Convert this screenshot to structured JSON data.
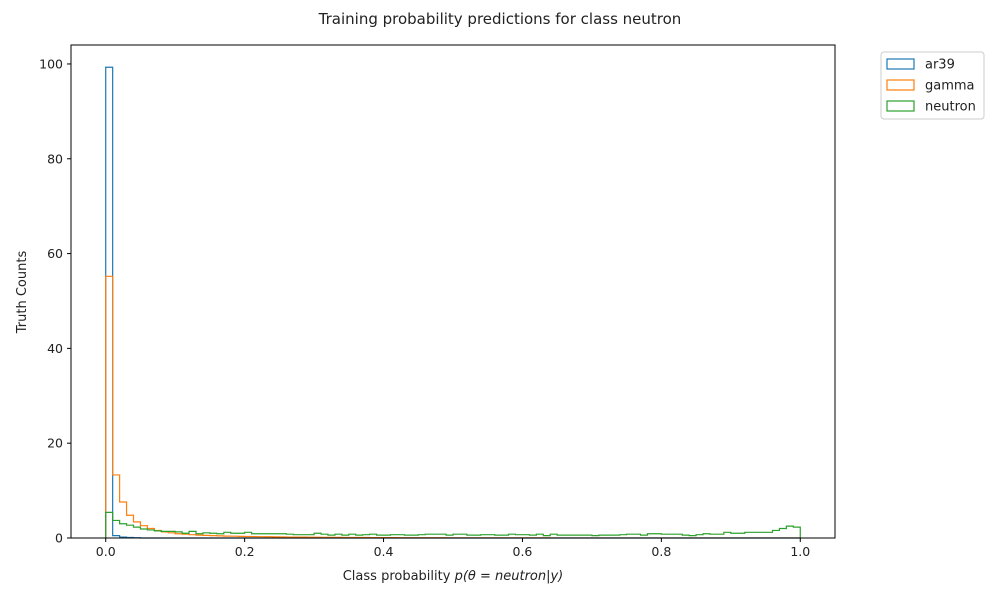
{
  "chart_data": {
    "type": "histogram",
    "title": "Training probability predictions for class neutron",
    "xlabel_prefix": "Class probability ",
    "xlabel_math": "p(θ = neutron|y)",
    "ylabel": "Truth Counts",
    "xlim": [
      -0.05,
      1.05
    ],
    "ylim": [
      0,
      104
    ],
    "xticks": [
      0.0,
      0.2,
      0.4,
      0.6,
      0.8,
      1.0
    ],
    "xtick_labels": [
      "0.0",
      "0.2",
      "0.4",
      "0.6",
      "0.8",
      "1.0"
    ],
    "yticks": [
      0,
      20,
      40,
      60,
      80,
      100
    ],
    "ytick_labels": [
      "0",
      "20",
      "40",
      "60",
      "80",
      "100"
    ],
    "bins": {
      "start": 0.0,
      "end": 1.0,
      "count": 100
    },
    "legend_position": "outside top-right",
    "series": [
      {
        "name": "ar39",
        "color": "#1f77b4",
        "values": [
          99.3,
          0.5,
          0.2,
          0.1,
          0.05,
          0,
          0,
          0,
          0,
          0,
          0,
          0,
          0,
          0,
          0,
          0,
          0,
          0,
          0,
          0,
          0,
          0,
          0,
          0,
          0,
          0,
          0,
          0,
          0,
          0,
          0,
          0,
          0,
          0,
          0,
          0,
          0,
          0,
          0,
          0,
          0,
          0,
          0,
          0,
          0,
          0,
          0,
          0,
          0,
          0,
          0,
          0,
          0,
          0,
          0,
          0,
          0,
          0,
          0,
          0,
          0,
          0,
          0,
          0,
          0,
          0,
          0,
          0,
          0,
          0,
          0,
          0,
          0,
          0,
          0,
          0,
          0,
          0,
          0,
          0,
          0,
          0,
          0,
          0,
          0,
          0,
          0,
          0,
          0,
          0,
          0,
          0,
          0,
          0,
          0,
          0,
          0,
          0,
          0,
          0
        ]
      },
      {
        "name": "gamma",
        "color": "#ff7f0e",
        "values": [
          55.2,
          13.3,
          7.6,
          4.8,
          3.4,
          2.6,
          2.0,
          1.6,
          1.3,
          1.1,
          0.9,
          0.8,
          0.7,
          0.6,
          0.55,
          0.5,
          0.45,
          0.4,
          0.38,
          0.35,
          0.32,
          0.3,
          0.28,
          0.26,
          0.24,
          0.22,
          0.2,
          0.19,
          0.18,
          0.17,
          0.16,
          0.15,
          0.14,
          0.13,
          0.12,
          0.11,
          0.1,
          0.1,
          0.09,
          0.09,
          0.08,
          0.08,
          0.07,
          0.07,
          0.06,
          0.06,
          0.05,
          0.05,
          0.05,
          0.04,
          0.04,
          0.04,
          0.03,
          0.03,
          0.03,
          0.03,
          0.02,
          0.02,
          0.02,
          0.02,
          0.02,
          0.02,
          0.02,
          0.02,
          0.01,
          0.01,
          0.01,
          0.01,
          0.01,
          0.01,
          0.01,
          0.01,
          0.01,
          0.01,
          0.01,
          0.01,
          0.01,
          0.01,
          0.01,
          0.01,
          0.01,
          0.01,
          0.01,
          0.01,
          0.01,
          0.01,
          0.01,
          0.01,
          0.01,
          0.01,
          0.01,
          0.01,
          0.01,
          0.01,
          0.01,
          0.01,
          0.01,
          0.01,
          0.01,
          0.01
        ]
      },
      {
        "name": "neutron",
        "color": "#2ca02c",
        "values": [
          5.4,
          3.7,
          3.0,
          2.7,
          2.3,
          1.9,
          1.7,
          1.5,
          1.4,
          1.4,
          1.3,
          1.0,
          1.4,
          0.9,
          1.1,
          1.0,
          0.9,
          1.2,
          1.0,
          1.0,
          1.2,
          0.9,
          0.9,
          0.9,
          0.9,
          0.9,
          0.8,
          0.7,
          0.7,
          0.7,
          1.0,
          0.8,
          0.6,
          0.8,
          0.6,
          0.8,
          0.6,
          0.7,
          0.8,
          0.6,
          0.6,
          0.7,
          0.7,
          0.6,
          0.6,
          0.7,
          0.8,
          0.8,
          0.8,
          0.6,
          0.8,
          0.8,
          0.6,
          0.6,
          0.7,
          0.7,
          0.6,
          0.6,
          0.8,
          0.7,
          0.7,
          0.6,
          0.8,
          0.5,
          0.8,
          0.6,
          0.6,
          0.6,
          0.6,
          0.6,
          0.5,
          0.6,
          0.6,
          0.6,
          0.7,
          0.8,
          0.8,
          0.6,
          0.9,
          0.9,
          0.8,
          0.8,
          0.8,
          0.6,
          0.5,
          0.7,
          0.9,
          0.8,
          0.8,
          1.2,
          1.0,
          1.0,
          1.2,
          1.2,
          1.2,
          1.2,
          1.6,
          2.0,
          2.5,
          2.3
        ]
      }
    ]
  }
}
